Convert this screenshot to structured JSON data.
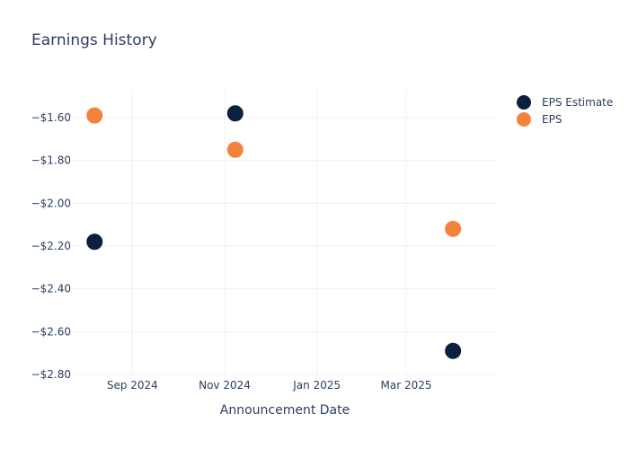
{
  "chart_data": {
    "type": "scatter",
    "title": "Earnings History",
    "xlabel": "Announcement Date",
    "ylabel": "",
    "x_ticks": [
      {
        "date": "2024-09-01",
        "label": "Sep 2024"
      },
      {
        "date": "2024-11-01",
        "label": "Nov 2024"
      },
      {
        "date": "2025-01-01",
        "label": "Jan 2025"
      },
      {
        "date": "2025-03-01",
        "label": "Mar 2025"
      }
    ],
    "xlim": [
      "2024-07-23",
      "2025-04-30"
    ],
    "y_ticks": [
      {
        "value": -1.6,
        "label": "−$1.60"
      },
      {
        "value": -1.8,
        "label": "−$1.80"
      },
      {
        "value": -2.0,
        "label": "−$2.00"
      },
      {
        "value": -2.2,
        "label": "−$2.20"
      },
      {
        "value": -2.4,
        "label": "−$2.40"
      },
      {
        "value": -2.6,
        "label": "−$2.60"
      },
      {
        "value": -2.8,
        "label": "−$2.80"
      }
    ],
    "ylim": [
      -2.8,
      -1.47
    ],
    "grid": true,
    "legend_position": "top-right",
    "series": [
      {
        "name": "EPS Estimate",
        "color": "#0b1f3f",
        "points": [
          {
            "x": "2024-08-07",
            "y": -2.18
          },
          {
            "x": "2024-11-08",
            "y": -1.58
          },
          {
            "x": "2025-04-01",
            "y": -2.69
          }
        ]
      },
      {
        "name": "EPS",
        "color": "#f5823a",
        "points": [
          {
            "x": "2024-08-07",
            "y": -1.59
          },
          {
            "x": "2024-11-08",
            "y": -1.75
          },
          {
            "x": "2025-04-01",
            "y": -2.12
          }
        ]
      }
    ]
  }
}
